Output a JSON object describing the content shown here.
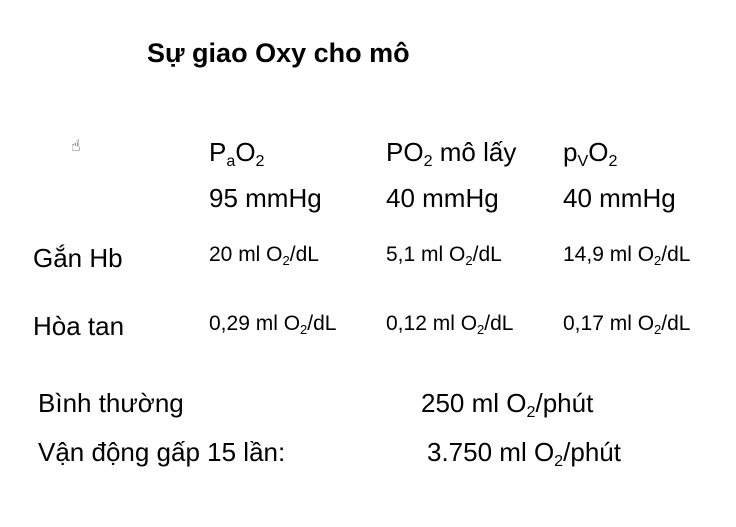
{
  "title": "Sự giao Oxy cho mô",
  "icons": {
    "cursor": "hand-cursor-icon"
  },
  "columns": [
    {
      "main": "P",
      "sub": "a",
      "main2": "O",
      "sub2": "2",
      "tail": "",
      "pressure": "95 mmHg"
    },
    {
      "main": "PO",
      "sub": "2",
      "main2": "",
      "sub2": "",
      "tail": " mô lấy",
      "pressure": "40 mmHg"
    },
    {
      "main": "p",
      "sub": "V",
      "main2": "O",
      "sub2": "2",
      "tail": "",
      "pressure": "40 mmHg"
    }
  ],
  "rows": [
    {
      "label": "Gắn Hb",
      "cells": [
        {
          "pre": "20 ml O",
          "sub": "2",
          "post": "/dL"
        },
        {
          "pre": "5,1 ml O",
          "sub": "2",
          "post": "/dL"
        },
        {
          "pre": "14,9 ml O",
          "sub": "2",
          "post": "/dL"
        }
      ]
    },
    {
      "label": "Hòa tan",
      "cells": [
        {
          "pre": "0,29 ml O",
          "sub": "2",
          "post": "/dL"
        },
        {
          "pre": "0,12 ml O",
          "sub": "2",
          "post": "/dL"
        },
        {
          "pre": "0,17 ml O",
          "sub": "2",
          "post": "/dL"
        }
      ]
    }
  ],
  "summary": [
    {
      "label": "Bình thường",
      "pre": "250 ml O",
      "sub": "2",
      "post": "/phút"
    },
    {
      "label": "Vận động gấp 15 lần:",
      "pre": "3.750 ml O",
      "sub": "2",
      "post": "/phút"
    }
  ]
}
